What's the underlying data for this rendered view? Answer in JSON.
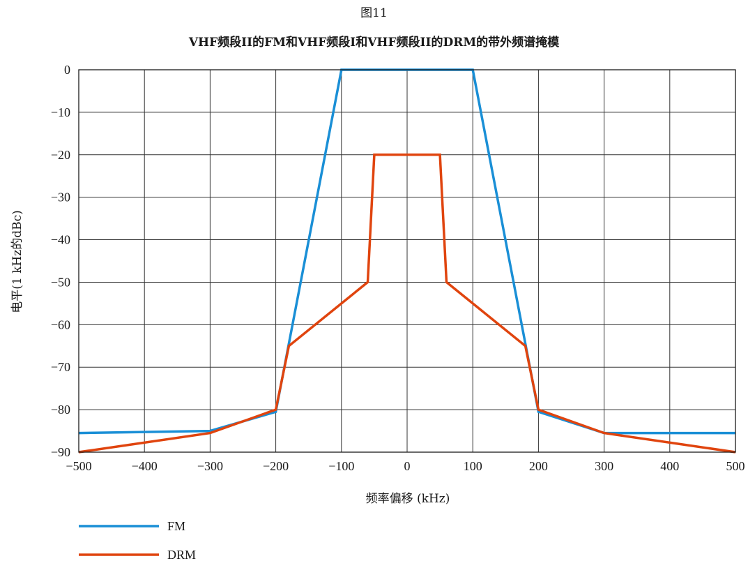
{
  "figure_label": "图11",
  "chart_data": {
    "type": "line",
    "title": "VHF频段II的FM和VHF频段I和VHF频段II的DRM的带外频谱掩模",
    "xlabel": "频率偏移 (kHz)",
    "ylabel": "电平(1 kHz的dBc)",
    "xlim": [
      -500,
      500
    ],
    "ylim": [
      -90,
      0
    ],
    "xticks": [
      -500,
      -400,
      -300,
      -200,
      -100,
      0,
      100,
      200,
      300,
      400,
      500
    ],
    "xtick_labels": [
      "−500",
      "−400",
      "−300",
      "−200",
      "−100",
      "0",
      "100",
      "200",
      "300",
      "400",
      "500"
    ],
    "yticks": [
      0,
      -10,
      -20,
      -30,
      -40,
      -50,
      -60,
      -70,
      -80,
      -90
    ],
    "ytick_labels": [
      "0",
      "−10",
      "−20",
      "−30",
      "−40",
      "−50",
      "−60",
      "−70",
      "−80",
      "−90"
    ],
    "grid": true,
    "legend_position": "bottom-left",
    "series": [
      {
        "name": "FM",
        "color": "#1a8fd6",
        "x": [
          -500,
          -300,
          -200,
          -100,
          100,
          200,
          300,
          500
        ],
        "y": [
          -85.5,
          -85,
          -80.5,
          0,
          0,
          -80.5,
          -85.5,
          -85.5
        ]
      },
      {
        "name": "DRM",
        "color": "#e0440e",
        "x": [
          -500,
          -300,
          -200,
          -180,
          -60,
          -50,
          50,
          60,
          180,
          200,
          300,
          500
        ],
        "y": [
          -90,
          -85.5,
          -80,
          -65,
          -50,
          -20,
          -20,
          -50,
          -65,
          -80,
          -85.5,
          -90
        ]
      }
    ]
  }
}
